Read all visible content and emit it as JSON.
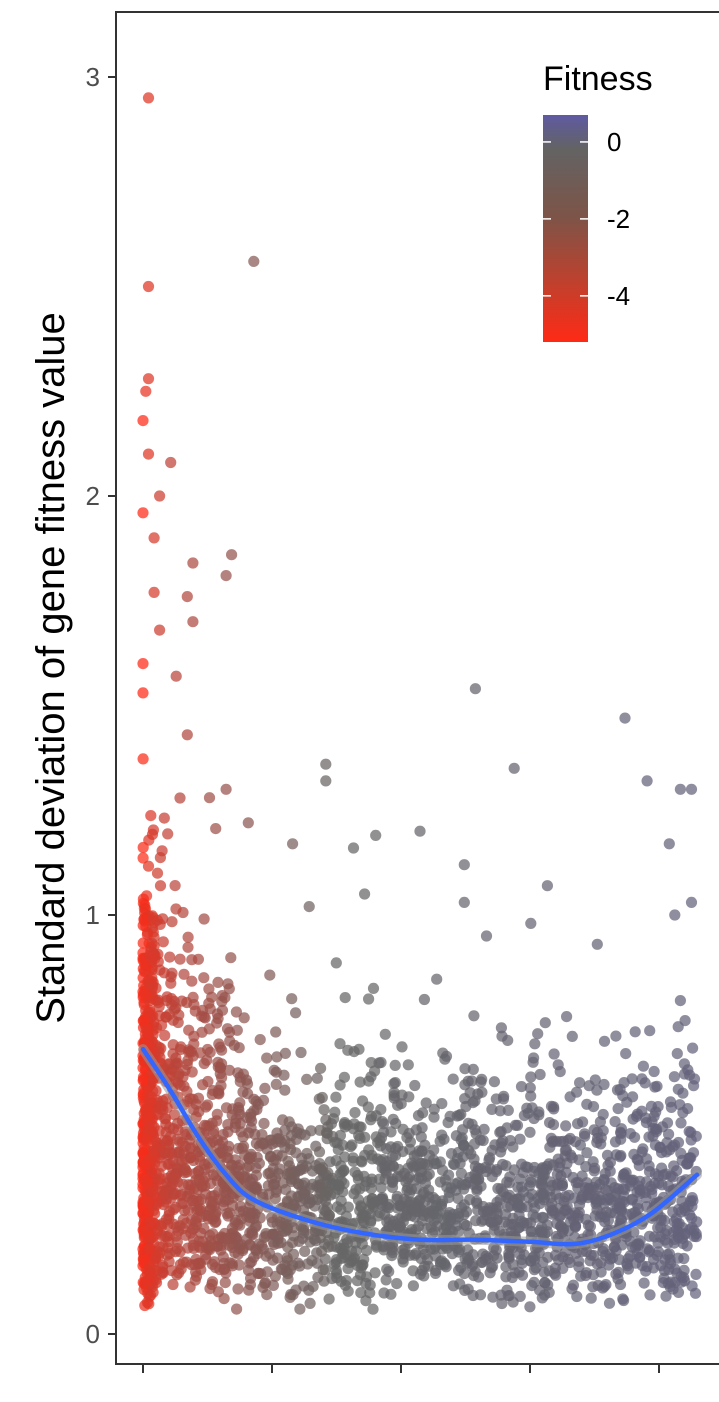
{
  "chart_data": {
    "type": "scatter",
    "title": "",
    "xlabel": "",
    "ylabel": "Standard deviation of gene fitness value",
    "ylim": [
      -0.15,
      3.15
    ],
    "xlim": [
      0,
      1
    ],
    "yticks": [
      {
        "value": 0,
        "label": "0"
      },
      {
        "value": 1,
        "label": "1"
      },
      {
        "value": 2,
        "label": "2"
      },
      {
        "value": 3,
        "label": "3"
      }
    ],
    "x_tick_count": 5,
    "x_tick_labels_visible": false,
    "grid": false,
    "point_color_variable": "Fitness",
    "legend": {
      "title": "Fitness",
      "placement": "top-right",
      "type": "colorbar",
      "breaks": [
        {
          "value": 0,
          "label": "0"
        },
        {
          "value": -2,
          "label": "-2"
        },
        {
          "value": -4,
          "label": "-4"
        }
      ],
      "range": [
        -5.2,
        0.7
      ],
      "low_color": "#ff2a16",
      "mid_color": "#636363",
      "high_color": "#5f5aa2"
    },
    "point_color_low": "#ff2a16",
    "point_color_mid": "#666666",
    "point_color_high": "#5f5aa2",
    "smooth_color": "#3366ff",
    "smooth_ribbon_color": "#999999",
    "highlighted_points": [
      {
        "x": 0.01,
        "y": 2.95
      },
      {
        "x": 0.01,
        "y": 2.5
      },
      {
        "x": 0.2,
        "y": 2.56
      },
      {
        "x": 0.01,
        "y": 2.28
      },
      {
        "x": 0.005,
        "y": 2.25
      },
      {
        "x": 0.0,
        "y": 2.18
      },
      {
        "x": 0.01,
        "y": 2.1
      },
      {
        "x": 0.05,
        "y": 2.08
      },
      {
        "x": 0.03,
        "y": 2.0
      },
      {
        "x": 0.0,
        "y": 1.96
      },
      {
        "x": 0.02,
        "y": 1.9
      },
      {
        "x": 0.16,
        "y": 1.86
      },
      {
        "x": 0.09,
        "y": 1.84
      },
      {
        "x": 0.15,
        "y": 1.81
      },
      {
        "x": 0.02,
        "y": 1.77
      },
      {
        "x": 0.08,
        "y": 1.76
      },
      {
        "x": 0.09,
        "y": 1.7
      },
      {
        "x": 0.03,
        "y": 1.68
      },
      {
        "x": 0.06,
        "y": 1.57
      },
      {
        "x": 0.0,
        "y": 1.6
      },
      {
        "x": 0.0,
        "y": 1.53
      },
      {
        "x": 0.6,
        "y": 1.54
      },
      {
        "x": 0.87,
        "y": 1.47
      },
      {
        "x": 0.08,
        "y": 1.43
      },
      {
        "x": 0.33,
        "y": 1.36
      },
      {
        "x": 0.67,
        "y": 1.35
      },
      {
        "x": 0.91,
        "y": 1.32
      },
      {
        "x": 0.97,
        "y": 1.3
      },
      {
        "x": 0.99,
        "y": 1.3
      },
      {
        "x": 0.33,
        "y": 1.32
      },
      {
        "x": 0.15,
        "y": 1.3
      },
      {
        "x": 0.12,
        "y": 1.28
      },
      {
        "x": 0.19,
        "y": 1.22
      },
      {
        "x": 0.5,
        "y": 1.2
      },
      {
        "x": 0.42,
        "y": 1.19
      },
      {
        "x": 0.27,
        "y": 1.17
      },
      {
        "x": 0.38,
        "y": 1.16
      },
      {
        "x": 0.95,
        "y": 1.17
      },
      {
        "x": 0.58,
        "y": 1.12
      },
      {
        "x": 0.73,
        "y": 1.07
      },
      {
        "x": 0.4,
        "y": 1.05
      },
      {
        "x": 0.99,
        "y": 1.03
      },
      {
        "x": 0.58,
        "y": 1.03
      },
      {
        "x": 0.3,
        "y": 1.02
      },
      {
        "x": 0.96,
        "y": 1.0
      },
      {
        "x": 0.7,
        "y": 0.98
      },
      {
        "x": 0.62,
        "y": 0.95
      },
      {
        "x": 0.82,
        "y": 0.93
      }
    ],
    "dense_band": {
      "x_range": [
        0,
        1
      ],
      "y_range": [
        0,
        0.9
      ],
      "description_values_per_x": "most genes have SD between 0.05 and 0.6"
    },
    "smooth_curve": [
      {
        "x": 0.0,
        "y": 0.68
      },
      {
        "x": 0.05,
        "y": 0.58
      },
      {
        "x": 0.1,
        "y": 0.47
      },
      {
        "x": 0.15,
        "y": 0.38
      },
      {
        "x": 0.2,
        "y": 0.32
      },
      {
        "x": 0.3,
        "y": 0.27
      },
      {
        "x": 0.4,
        "y": 0.24
      },
      {
        "x": 0.5,
        "y": 0.225
      },
      {
        "x": 0.6,
        "y": 0.225
      },
      {
        "x": 0.7,
        "y": 0.22
      },
      {
        "x": 0.78,
        "y": 0.215
      },
      {
        "x": 0.85,
        "y": 0.24
      },
      {
        "x": 0.92,
        "y": 0.29
      },
      {
        "x": 1.0,
        "y": 0.38
      }
    ]
  }
}
